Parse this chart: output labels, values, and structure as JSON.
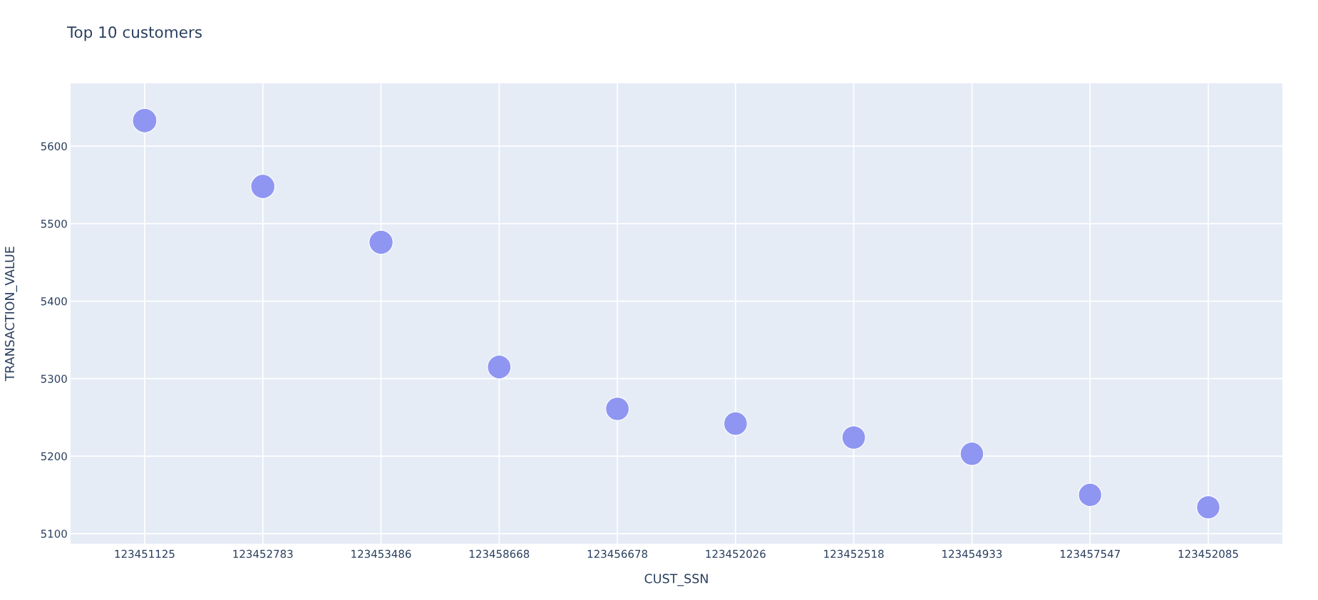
{
  "chart_data": {
    "type": "bubble",
    "title": "Top 10 customers",
    "xlabel": "CUST_SSN",
    "ylabel": "TRANSACTION_VALUE",
    "categories": [
      "123451125",
      "123452783",
      "123453486",
      "123458668",
      "123456678",
      "123452026",
      "123452518",
      "123454933",
      "123457547",
      "123452085"
    ],
    "values": [
      5633,
      5548,
      5476,
      5315,
      5261,
      5242,
      5224,
      5203,
      5150,
      5134
    ],
    "sizes": [
      1,
      0.98,
      0.97,
      0.94,
      0.93,
      0.93,
      0.93,
      0.92,
      0.91,
      0.91
    ],
    "color": "#8f96f2",
    "ylim": [
      5087,
      5681
    ],
    "yticks": [
      5100,
      5200,
      5300,
      5400,
      5500,
      5600
    ],
    "grid": true
  }
}
